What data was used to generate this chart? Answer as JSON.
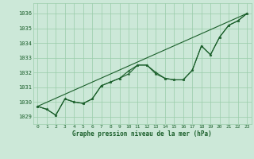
{
  "xlabel": "Graphe pression niveau de la mer (hPa)",
  "xlim": [
    -0.5,
    23.5
  ],
  "ylim": [
    1028.5,
    1036.7
  ],
  "yticks": [
    1029,
    1030,
    1031,
    1032,
    1033,
    1034,
    1035,
    1036
  ],
  "xticks": [
    0,
    1,
    2,
    3,
    4,
    5,
    6,
    7,
    8,
    9,
    10,
    11,
    12,
    13,
    14,
    15,
    16,
    17,
    18,
    19,
    20,
    21,
    22,
    23
  ],
  "background_color": "#cce8d8",
  "grid_color": "#99ccaa",
  "line_color": "#1a5e2a",
  "straight_line_x": [
    0,
    23
  ],
  "straight_line_y": [
    1029.7,
    1036.0
  ],
  "main_line_x": [
    0,
    1,
    2,
    3,
    4,
    5,
    6,
    7,
    8,
    9,
    10,
    11,
    12,
    13,
    14,
    15,
    16,
    17,
    18,
    19,
    20,
    21,
    22,
    23
  ],
  "main_line_y": [
    1029.7,
    1029.5,
    1029.1,
    1030.2,
    1030.0,
    1029.9,
    1030.2,
    1031.1,
    1031.35,
    1031.6,
    1032.1,
    1032.5,
    1032.5,
    1032.0,
    1031.6,
    1031.5,
    1031.5,
    1032.15,
    1033.8,
    1033.2,
    1034.4,
    1035.2,
    1035.5,
    1036.0
  ],
  "loop_line_x": [
    0,
    1,
    2,
    3,
    4,
    5,
    6,
    7,
    8,
    9,
    10,
    11,
    12,
    13,
    14,
    15,
    16,
    17,
    18,
    19,
    20,
    21,
    22,
    23
  ],
  "loop_line_y": [
    1029.7,
    1029.5,
    1029.1,
    1030.2,
    1030.0,
    1029.9,
    1030.2,
    1031.1,
    1031.35,
    1031.6,
    1031.9,
    1032.5,
    1032.5,
    1031.9,
    1031.6,
    1031.5,
    1031.5,
    1032.15,
    1033.8,
    1033.2,
    1034.4,
    1035.2,
    1035.5,
    1036.0
  ]
}
